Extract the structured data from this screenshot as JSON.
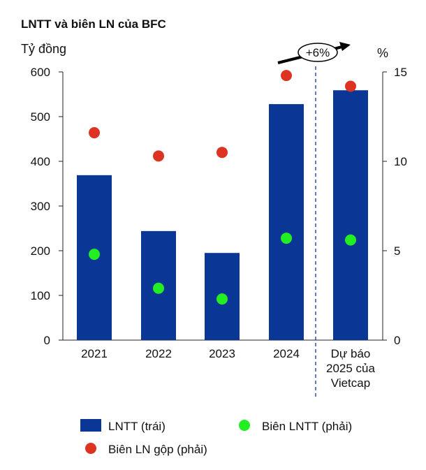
{
  "chart_data": {
    "type": "bar",
    "title": "LNTT và biên LN của BFC",
    "ylabel": "Tỷ đồng",
    "y2label": "%",
    "categories": [
      [
        "2021"
      ],
      [
        "2022"
      ],
      [
        "2023"
      ],
      [
        "2024"
      ],
      [
        "Dự báo",
        "2025 của",
        "Vietcap"
      ]
    ],
    "ylim": [
      0,
      600
    ],
    "y2lim": [
      0,
      15
    ],
    "yticks": [
      "0",
      "100",
      "200",
      "300",
      "400",
      "500",
      "600"
    ],
    "y2ticks": [
      "0",
      "5",
      "10",
      "15"
    ],
    "series": [
      {
        "name": "LNTT (trái)",
        "type": "bar",
        "axis": "left",
        "color": "#0a3696",
        "values": [
          369,
          244,
          195,
          528,
          559
        ]
      },
      {
        "name": "Biên LNTT (phải)",
        "type": "scatter",
        "axis": "right",
        "color": "#22ee22",
        "values": [
          4.8,
          2.9,
          2.3,
          5.7,
          5.6
        ]
      },
      {
        "name": "Biên LN gộp (phải)",
        "type": "scatter",
        "axis": "right",
        "color": "#dd3322",
        "values": [
          11.6,
          10.3,
          10.5,
          14.8,
          14.2
        ]
      }
    ],
    "annotation": "+6%",
    "legend": "bottom"
  }
}
